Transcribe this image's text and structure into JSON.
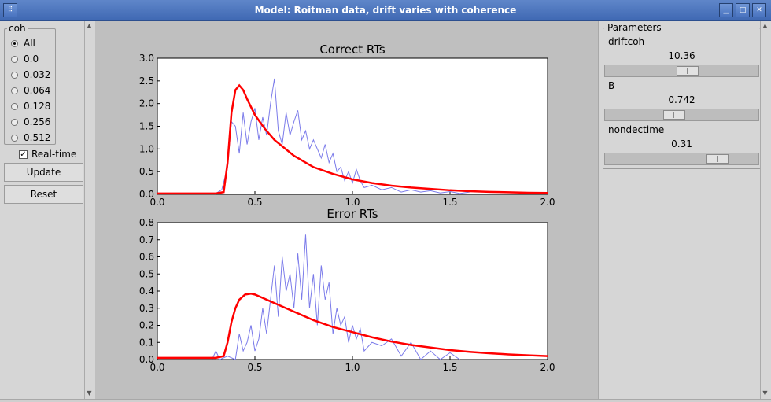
{
  "window": {
    "title": "Model: Roitman data, drift varies with coherence",
    "menu_icon": "grip-icon",
    "buttons": [
      "minimize-icon",
      "maximize-icon",
      "close-icon"
    ]
  },
  "controls": {
    "coh_label": "coh",
    "coh_options": [
      "All",
      "0.0",
      "0.032",
      "0.064",
      "0.128",
      "0.256",
      "0.512"
    ],
    "coh_selected": "All",
    "realtime_label": "Real-time",
    "realtime_checked": true,
    "update_label": "Update",
    "reset_label": "Reset"
  },
  "parameters": {
    "title": "Parameters",
    "items": [
      {
        "name": "driftcoh",
        "value": "10.36",
        "slider_fraction": 0.55
      },
      {
        "name": "B",
        "value": "0.742",
        "slider_fraction": 0.45
      },
      {
        "name": "nondectime",
        "value": "0.31",
        "slider_fraction": 0.78
      }
    ]
  },
  "chart_data": [
    {
      "type": "line",
      "title": "Correct RTs",
      "xlim": [
        0,
        2
      ],
      "ylim": [
        0,
        3.0
      ],
      "x_ticks": [
        "0.0",
        "0.5",
        "1.0",
        "1.5",
        "2.0"
      ],
      "y_ticks": [
        "0.0",
        "0.5",
        "1.0",
        "1.5",
        "2.0",
        "2.5",
        "3.0"
      ],
      "colors": {
        "model": "#ff0000",
        "data": "#7b7bea"
      },
      "series": [
        {
          "x": [
            0,
            0.1,
            0.2,
            0.3,
            0.34,
            0.36,
            0.38,
            0.4,
            0.42,
            0.44,
            0.46,
            0.5,
            0.55,
            0.6,
            0.7,
            0.8,
            0.9,
            1.0,
            1.1,
            1.2,
            1.3,
            1.4,
            1.5,
            1.6,
            1.7,
            1.8,
            1.9,
            2.0
          ],
          "values": [
            0.02,
            0.02,
            0.02,
            0.02,
            0.05,
            0.7,
            1.8,
            2.3,
            2.4,
            2.3,
            2.1,
            1.75,
            1.45,
            1.2,
            0.85,
            0.6,
            0.45,
            0.33,
            0.25,
            0.19,
            0.15,
            0.12,
            0.09,
            0.07,
            0.055,
            0.045,
            0.035,
            0.03
          ]
        },
        {
          "x": [
            0.3,
            0.33,
            0.36,
            0.38,
            0.4,
            0.42,
            0.44,
            0.46,
            0.48,
            0.5,
            0.52,
            0.54,
            0.56,
            0.58,
            0.6,
            0.62,
            0.64,
            0.66,
            0.68,
            0.7,
            0.72,
            0.74,
            0.76,
            0.78,
            0.8,
            0.82,
            0.84,
            0.86,
            0.88,
            0.9,
            0.92,
            0.94,
            0.96,
            0.98,
            1.0,
            1.02,
            1.04,
            1.06,
            1.1,
            1.15,
            1.2,
            1.25,
            1.3,
            1.35,
            1.4,
            1.45,
            1.5,
            1.55,
            1.6
          ],
          "values": [
            0.02,
            0.1,
            0.6,
            1.6,
            1.5,
            0.9,
            1.8,
            1.1,
            1.6,
            1.9,
            1.2,
            1.7,
            1.3,
            2.0,
            2.55,
            1.4,
            1.1,
            1.8,
            1.3,
            1.6,
            1.85,
            1.2,
            1.4,
            1.0,
            1.2,
            1.0,
            0.8,
            1.1,
            0.7,
            0.9,
            0.5,
            0.6,
            0.3,
            0.5,
            0.25,
            0.55,
            0.3,
            0.15,
            0.2,
            0.1,
            0.15,
            0.05,
            0.1,
            0.05,
            0.08,
            0.03,
            0.06,
            0.02,
            0.05
          ]
        }
      ]
    },
    {
      "type": "line",
      "title": "Error RTs",
      "xlim": [
        0,
        2
      ],
      "ylim": [
        0,
        0.8
      ],
      "x_ticks": [
        "0.0",
        "0.5",
        "1.0",
        "1.5",
        "2.0"
      ],
      "y_ticks": [
        "0.0",
        "0.1",
        "0.2",
        "0.3",
        "0.4",
        "0.5",
        "0.6",
        "0.7",
        "0.8"
      ],
      "colors": {
        "model": "#ff0000",
        "data": "#7b7bea"
      },
      "series": [
        {
          "x": [
            0,
            0.1,
            0.2,
            0.3,
            0.34,
            0.36,
            0.38,
            0.4,
            0.42,
            0.45,
            0.48,
            0.5,
            0.55,
            0.6,
            0.7,
            0.8,
            0.9,
            1.0,
            1.1,
            1.2,
            1.3,
            1.4,
            1.5,
            1.6,
            1.7,
            1.8,
            1.9,
            2.0
          ],
          "values": [
            0.01,
            0.01,
            0.01,
            0.01,
            0.02,
            0.1,
            0.22,
            0.3,
            0.35,
            0.38,
            0.385,
            0.38,
            0.355,
            0.33,
            0.28,
            0.23,
            0.19,
            0.16,
            0.13,
            0.105,
            0.085,
            0.07,
            0.055,
            0.045,
            0.037,
            0.03,
            0.025,
            0.02
          ]
        },
        {
          "x": [
            0.28,
            0.3,
            0.32,
            0.36,
            0.4,
            0.42,
            0.44,
            0.46,
            0.48,
            0.5,
            0.52,
            0.54,
            0.56,
            0.58,
            0.6,
            0.62,
            0.64,
            0.66,
            0.68,
            0.7,
            0.72,
            0.74,
            0.76,
            0.78,
            0.8,
            0.82,
            0.84,
            0.86,
            0.88,
            0.9,
            0.92,
            0.94,
            0.96,
            0.98,
            1.0,
            1.02,
            1.04,
            1.06,
            1.1,
            1.15,
            1.2,
            1.25,
            1.3,
            1.35,
            1.4,
            1.45,
            1.5,
            1.55
          ],
          "values": [
            0.0,
            0.05,
            0.0,
            0.02,
            0.0,
            0.15,
            0.05,
            0.1,
            0.2,
            0.05,
            0.12,
            0.3,
            0.15,
            0.35,
            0.55,
            0.25,
            0.6,
            0.4,
            0.5,
            0.3,
            0.62,
            0.35,
            0.73,
            0.3,
            0.5,
            0.2,
            0.55,
            0.35,
            0.45,
            0.15,
            0.3,
            0.2,
            0.25,
            0.1,
            0.2,
            0.12,
            0.18,
            0.05,
            0.1,
            0.08,
            0.12,
            0.02,
            0.1,
            0.0,
            0.05,
            0.0,
            0.04,
            0.0
          ]
        }
      ]
    }
  ]
}
